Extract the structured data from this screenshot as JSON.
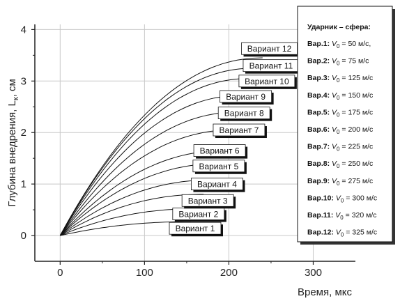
{
  "chart_data": {
    "type": "line",
    "xlabel": "Время, мкс",
    "ylabel": "Глубина внедрения, L",
    "ylabel_sub": "к",
    "ylabel_unit": ", см",
    "xlim": [
      -30,
      350
    ],
    "ylim": [
      -0.5,
      4.1
    ],
    "xticks": [
      0,
      100,
      200,
      300
    ],
    "yticks": [
      0,
      1,
      2,
      3,
      4
    ],
    "grid": true,
    "series": [
      {
        "name": "Вариант 1",
        "label_x": 160,
        "label_y": 0.14,
        "peak_x": 155,
        "peak_y": 0.27
      },
      {
        "name": "Вариант 2",
        "label_x": 164,
        "label_y": 0.42,
        "peak_x": 160,
        "peak_y": 0.52
      },
      {
        "name": "Вариант 3",
        "label_x": 175,
        "label_y": 0.68,
        "peak_x": 170,
        "peak_y": 0.8
      },
      {
        "name": "Вариант 4",
        "label_x": 186,
        "label_y": 1.0,
        "peak_x": 180,
        "peak_y": 1.08
      },
      {
        "name": "Вариант 5",
        "label_x": 188,
        "label_y": 1.35,
        "peak_x": 190,
        "peak_y": 1.4
      },
      {
        "name": "Вариант 6",
        "label_x": 189,
        "label_y": 1.65,
        "peak_x": 195,
        "peak_y": 1.65
      },
      {
        "name": "Вариант 7",
        "label_x": 212,
        "label_y": 2.05,
        "peak_x": 205,
        "peak_y": 2.05
      },
      {
        "name": "Вариант 8",
        "label_x": 218,
        "label_y": 2.38,
        "peak_x": 212,
        "peak_y": 2.4
      },
      {
        "name": "Вариант 9",
        "label_x": 220,
        "label_y": 2.7,
        "peak_x": 215,
        "peak_y": 2.72
      },
      {
        "name": "Вариант 10",
        "label_x": 245,
        "label_y": 3.0,
        "peak_x": 225,
        "peak_y": 3.05
      },
      {
        "name": "Вариант 11",
        "label_x": 250,
        "label_y": 3.3,
        "peak_x": 230,
        "peak_y": 3.25
      },
      {
        "name": "Вариант 12",
        "label_x": 248,
        "label_y": 3.63,
        "peak_x": 240,
        "peak_y": 3.45
      }
    ],
    "legend": {
      "placement": "right",
      "title": "Ударник – сфера:",
      "entries": [
        {
          "var": "Вар.1:",
          "sym": "V",
          "sub": "0",
          "value": " = 50 м/с,"
        },
        {
          "var": "Вар.2:",
          "sym": "V",
          "sub": "0",
          "value": " = 75 м/с"
        },
        {
          "var": "Вар.3:",
          "sym": "V",
          "sub": "0",
          "value": " = 125 м/с"
        },
        {
          "var": "Вар.4:",
          "sym": "V",
          "sub": "0",
          "value": " = 150 м/с"
        },
        {
          "var": "Вар.5:",
          "sym": "V",
          "sub": "0",
          "value": " = 175 м/с"
        },
        {
          "var": "Вар.6:",
          "sym": "V",
          "sub": "0",
          "value": " = 200 м/с"
        },
        {
          "var": "Вар.7:",
          "sym": "V",
          "sub": "0",
          "value": " = 225 м/с"
        },
        {
          "var": "Вар.8:",
          "sym": "V",
          "sub": "0",
          "value": " = 250 м/с"
        },
        {
          "var": "Вар.9:",
          "sym": "V",
          "sub": "0",
          "value": " = 275 м/с"
        },
        {
          "var": "Вар.10:",
          "sym": "V",
          "sub": "0",
          "value": " = 300 м/с"
        },
        {
          "var": "Вар.11:",
          "sym": "V",
          "sub": "0",
          "value": " = 320 м/с"
        },
        {
          "var": "Вар.12:",
          "sym": "V",
          "sub": "0",
          "value": " = 325 м/с"
        }
      ]
    }
  }
}
